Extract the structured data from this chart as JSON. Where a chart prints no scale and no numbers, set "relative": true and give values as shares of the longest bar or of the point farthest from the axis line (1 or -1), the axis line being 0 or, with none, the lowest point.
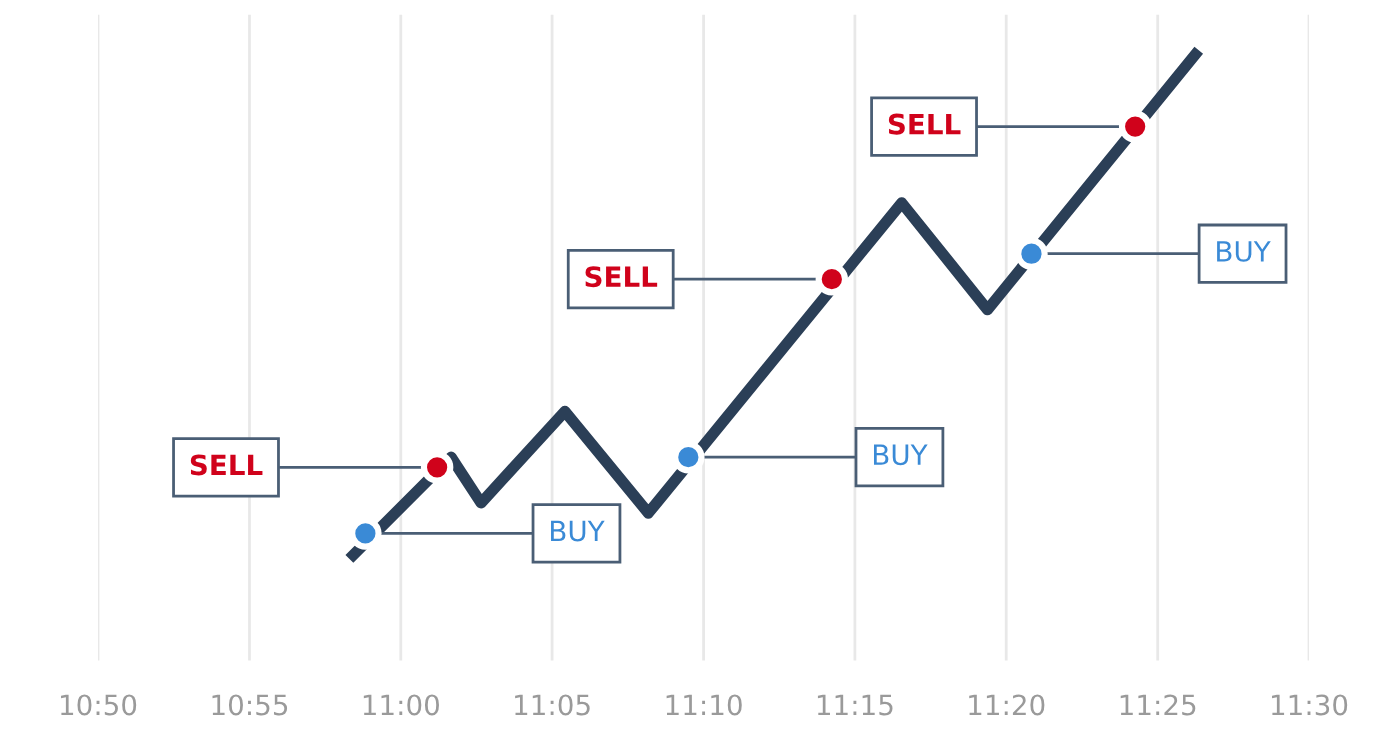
{
  "chart_data": {
    "type": "line",
    "relative": true,
    "xlim": [
      10.8333,
      11.5
    ],
    "xticks": [
      {
        "value": 10.8333,
        "label": "10:50"
      },
      {
        "value": 10.9167,
        "label": "10:55"
      },
      {
        "value": 11.0,
        "label": "11:00"
      },
      {
        "value": 11.0833,
        "label": "11:05"
      },
      {
        "value": 11.1667,
        "label": "11:10"
      },
      {
        "value": 11.25,
        "label": "11:15"
      },
      {
        "value": 11.3333,
        "label": "11:20"
      },
      {
        "value": 11.4167,
        "label": "11:25"
      },
      {
        "value": 11.5,
        "label": "11:30"
      }
    ],
    "grid": "x",
    "tick_labels": "x",
    "legend": false,
    "line_style": "solid",
    "series": [
      {
        "color": "#2b3f57",
        "x": [
          10.9717,
          11.0277,
          11.0442,
          11.0903,
          11.1363,
          11.2758,
          11.323,
          11.4393
        ],
        "values": [
          0,
          0.2,
          0.11,
          0.29,
          0.09,
          0.7,
          0.49,
          1
        ]
      },
      {
        "type": "scatter",
        "marker": "circle",
        "color": "#3a8ad6",
        "x": [
          10.9805,
          11.1583,
          11.3472
        ],
        "values": [
          0.05,
          0.2,
          0.6
        ]
      },
      {
        "type": "scatter",
        "marker": "circle",
        "color": "#d0021b",
        "x": [
          11.02,
          11.2373,
          11.4043
        ],
        "values": [
          0.18,
          0.55,
          0.85
        ]
      }
    ],
    "annotations": [
      {
        "text": "BUY",
        "x": 10.9805,
        "y": 0.05
      },
      {
        "text": "SELL",
        "x": 11.02,
        "y": 0.18
      },
      {
        "text": "BUY",
        "x": 11.1583,
        "y": 0.2
      },
      {
        "text": "SELL",
        "x": 11.2373,
        "y": 0.55
      },
      {
        "text": "BUY",
        "x": 11.3472,
        "y": 0.6
      },
      {
        "text": "SELL",
        "x": 11.4043,
        "y": 0.85
      }
    ]
  }
}
